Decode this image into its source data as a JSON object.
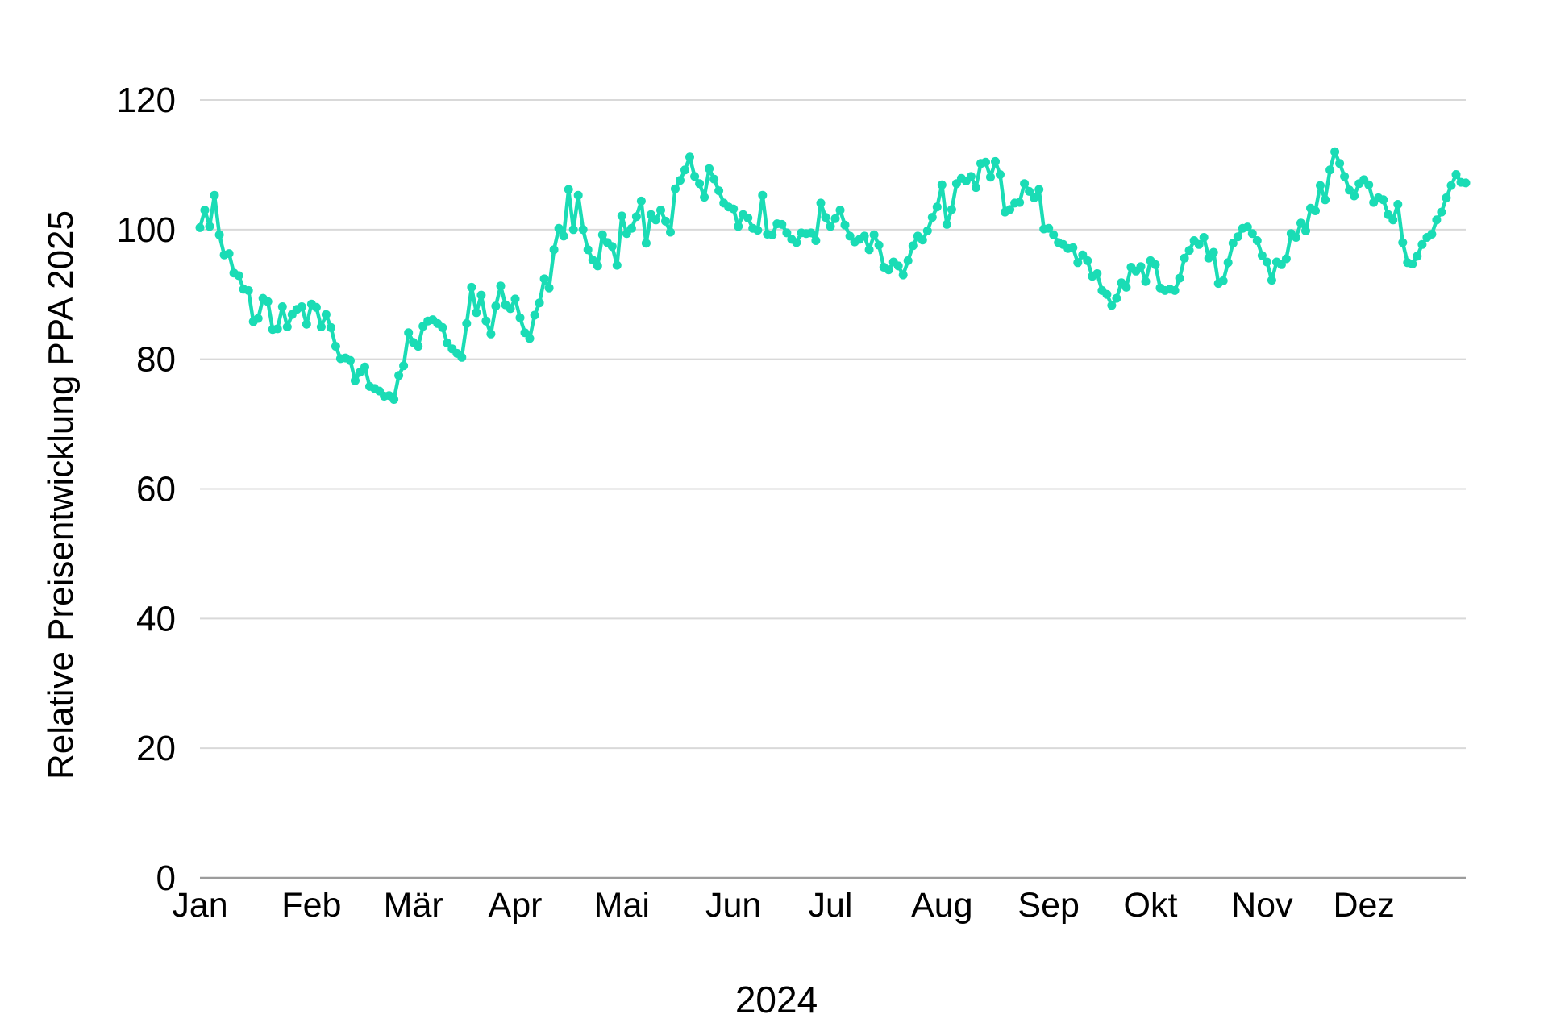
{
  "chart_data": {
    "type": "line",
    "title": "",
    "xlabel": "2024",
    "ylabel": "Relative Preisentwicklung PPA 2025",
    "x_tick_labels": [
      "Jan",
      "Feb",
      "Mär",
      "Apr",
      "Mai",
      "Jun",
      "Jul",
      "Aug",
      "Sep",
      "Okt",
      "Nov",
      "Dez"
    ],
    "month_start_indices": [
      0,
      23,
      44,
      65,
      87,
      110,
      130,
      153,
      175,
      196,
      219,
      240
    ],
    "y_ticks": [
      0,
      20,
      40,
      60,
      80,
      100,
      120
    ],
    "ylim": [
      0,
      120
    ],
    "grid": "horizontal",
    "legend": "none",
    "series_name": "Relative Preisentwicklung PPA 2025",
    "line_color": "#1adcb5",
    "gridline_color": "#d9d9d9",
    "zero_axis_color": "#9c9c9c",
    "text_color": "#000000",
    "background_color": "#ffffff",
    "marker": "circle",
    "values": [
      100.3,
      103.0,
      100.5,
      105.3,
      99.2,
      96.1,
      96.3,
      93.3,
      92.9,
      90.8,
      90.6,
      85.8,
      86.3,
      89.4,
      88.9,
      84.6,
      84.7,
      88.1,
      85.0,
      86.9,
      87.7,
      88.1,
      85.4,
      88.5,
      88.0,
      85.0,
      86.9,
      84.9,
      82.0,
      80.1,
      80.2,
      79.8,
      76.7,
      78.0,
      78.8,
      75.8,
      75.5,
      75.1,
      74.3,
      74.4,
      73.8,
      77.5,
      79.0,
      84.1,
      82.6,
      82.0,
      85.1,
      85.9,
      86.1,
      85.5,
      84.9,
      82.5,
      81.6,
      80.9,
      80.3,
      85.5,
      91.1,
      87.2,
      89.9,
      85.9,
      83.9,
      88.2,
      91.3,
      88.4,
      87.8,
      89.3,
      86.4,
      84.1,
      83.2,
      86.8,
      88.7,
      92.4,
      91.0,
      96.9,
      100.2,
      99.0,
      106.2,
      100.0,
      105.3,
      100.0,
      96.9,
      95.3,
      94.4,
      99.2,
      98.0,
      97.4,
      94.5,
      102.1,
      99.4,
      100.2,
      102.0,
      104.4,
      97.9,
      102.3,
      101.5,
      103.0,
      101.3,
      99.6,
      106.3,
      107.6,
      109.2,
      111.2,
      108.2,
      107.1,
      105.0,
      109.4,
      107.8,
      106.0,
      104.1,
      103.5,
      103.2,
      100.5,
      102.3,
      101.8,
      100.2,
      99.9,
      105.3,
      99.3,
      99.2,
      100.9,
      100.8,
      99.5,
      98.5,
      98.0,
      99.5,
      99.4,
      99.5,
      98.3,
      104.1,
      101.9,
      100.5,
      101.7,
      103.0,
      100.7,
      99.0,
      98.1,
      98.5,
      99.0,
      96.9,
      99.2,
      97.6,
      94.2,
      93.8,
      95.0,
      94.4,
      93.0,
      95.2,
      97.5,
      99.0,
      98.4,
      99.8,
      101.9,
      103.5,
      106.9,
      100.8,
      103.1,
      107.1,
      107.9,
      107.5,
      108.2,
      106.5,
      110.2,
      110.4,
      108.1,
      110.5,
      108.5,
      102.7,
      103.1,
      104.1,
      104.2,
      107.1,
      105.9,
      104.9,
      106.2,
      100.1,
      100.2,
      99.2,
      98.0,
      97.7,
      97.1,
      97.2,
      94.9,
      96.1,
      95.2,
      92.8,
      93.2,
      90.6,
      90.0,
      88.3,
      89.4,
      91.8,
      91.1,
      94.2,
      93.6,
      94.3,
      92.0,
      95.2,
      94.6,
      91.0,
      90.6,
      90.8,
      90.6,
      92.5,
      95.6,
      96.8,
      98.3,
      97.7,
      98.8,
      95.6,
      96.5,
      91.7,
      92.1,
      94.9,
      97.9,
      98.9,
      100.2,
      100.4,
      99.4,
      98.3,
      96.0,
      95.0,
      92.2,
      95.0,
      94.6,
      95.5,
      99.4,
      98.8,
      101.0,
      99.8,
      103.3,
      102.9,
      106.8,
      104.6,
      109.2,
      112.0,
      110.2,
      108.2,
      106.1,
      105.2,
      107.1,
      107.7,
      106.9,
      104.2,
      104.9,
      104.6,
      102.3,
      101.5,
      103.9,
      98.0,
      94.9,
      94.7,
      95.9,
      97.7,
      98.8,
      99.3,
      101.5,
      102.7,
      104.9,
      106.8,
      108.5,
      107.3,
      107.2
    ]
  }
}
